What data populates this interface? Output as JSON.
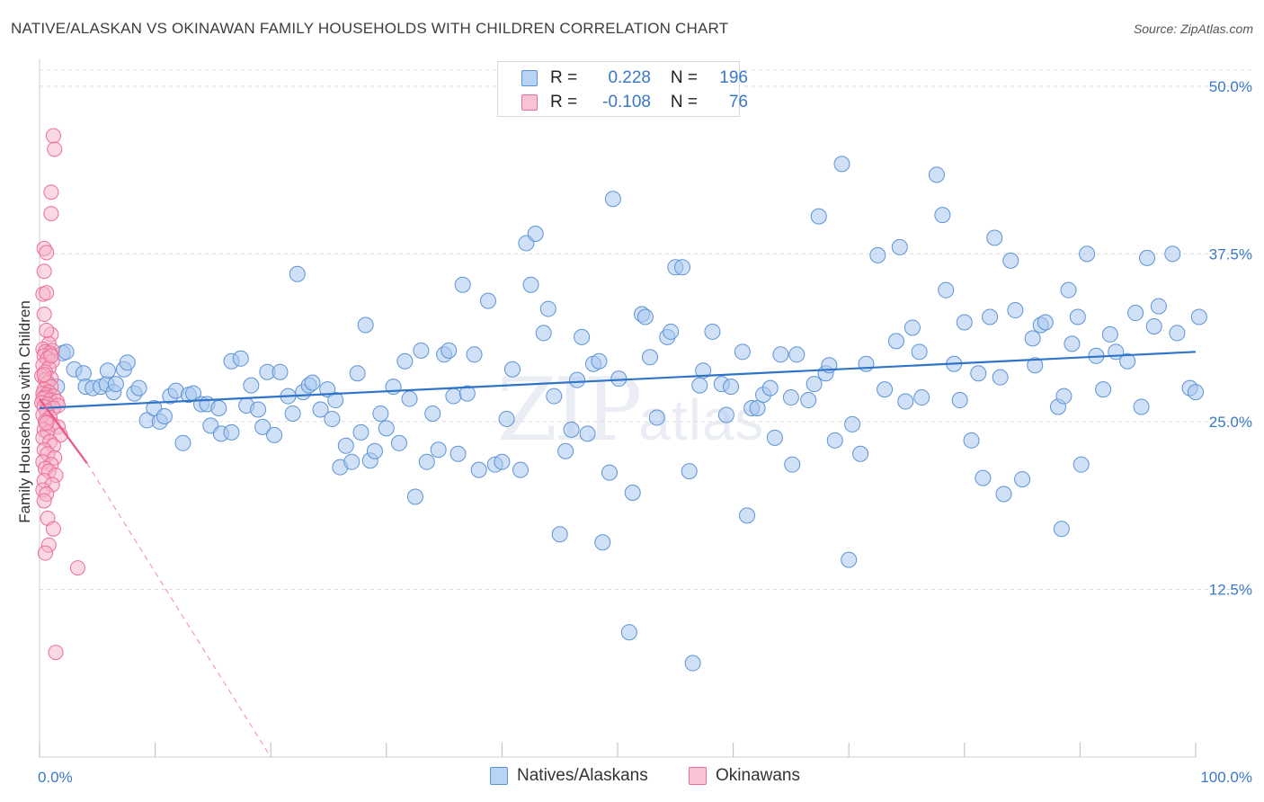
{
  "title": "NATIVE/ALASKAN VS OKINAWAN FAMILY HOUSEHOLDS WITH CHILDREN CORRELATION CHART",
  "source": "Source: ZipAtlas.com",
  "watermark": {
    "zip": "ZIP",
    "atlas": "atlas"
  },
  "colors": {
    "blue_fill": "#a9c8f0",
    "blue_stroke": "#5c93d6",
    "blue_line": "#2f74c9",
    "pink_fill": "#f6b3c8",
    "pink_stroke": "#ec6d97",
    "pink_line": "#e8568a",
    "grid": "#dcdcdc",
    "tick_text": "#3a78c9"
  },
  "legend": {
    "rows": [
      {
        "r_label": "R =",
        "r_value": "0.228",
        "n_label": "N =",
        "n_value": "196"
      },
      {
        "r_label": "R =",
        "r_value": "-0.108",
        "n_label": "N =",
        "n_value": "76"
      }
    ]
  },
  "bottom_legend": {
    "natives": "Natives/Alaskans",
    "okinawans": "Okinawans"
  },
  "chart_data": {
    "type": "scatter",
    "title": "NATIVE/ALASKAN VS OKINAWAN FAMILY HOUSEHOLDS WITH CHILDREN CORRELATION CHART",
    "xlabel": "",
    "ylabel": "Family Households with Children",
    "xlim": [
      0,
      100
    ],
    "ylim": [
      0,
      52
    ],
    "x_tick_labels": [
      "0.0%",
      "100.0%"
    ],
    "y_ticks": [
      12.5,
      25.0,
      37.5,
      50.0
    ],
    "y_tick_labels": [
      "12.5%",
      "25.0%",
      "37.5%",
      "50.0%"
    ],
    "series": [
      {
        "name": "Natives/Alaskans",
        "r": 0.228,
        "n": 196,
        "trend": {
          "x": [
            0,
            100
          ],
          "y": [
            26.0,
            30.2
          ]
        },
        "points": [
          [
            1.5,
            27.6
          ],
          [
            2.0,
            30.1
          ],
          [
            2.3,
            30.2
          ],
          [
            3.0,
            28.9
          ],
          [
            3.8,
            28.6
          ],
          [
            4.0,
            27.6
          ],
          [
            4.6,
            27.5
          ],
          [
            5.3,
            27.6
          ],
          [
            5.8,
            27.8
          ],
          [
            5.9,
            28.8
          ],
          [
            6.4,
            27.2
          ],
          [
            6.6,
            27.8
          ],
          [
            7.3,
            28.9
          ],
          [
            7.6,
            29.4
          ],
          [
            8.2,
            27.1
          ],
          [
            8.6,
            27.5
          ],
          [
            9.3,
            25.1
          ],
          [
            9.9,
            26.0
          ],
          [
            10.4,
            25.0
          ],
          [
            10.8,
            25.4
          ],
          [
            11.3,
            26.9
          ],
          [
            11.8,
            27.3
          ],
          [
            12.4,
            23.4
          ],
          [
            12.9,
            27.0
          ],
          [
            13.3,
            27.1
          ],
          [
            14.0,
            26.3
          ],
          [
            14.5,
            26.3
          ],
          [
            14.8,
            24.7
          ],
          [
            15.5,
            26.0
          ],
          [
            15.7,
            24.1
          ],
          [
            16.6,
            24.2
          ],
          [
            16.6,
            29.5
          ],
          [
            17.4,
            29.7
          ],
          [
            17.9,
            26.2
          ],
          [
            18.3,
            27.7
          ],
          [
            18.9,
            25.9
          ],
          [
            19.3,
            24.6
          ],
          [
            19.7,
            28.7
          ],
          [
            20.3,
            24.0
          ],
          [
            20.8,
            28.7
          ],
          [
            21.5,
            26.9
          ],
          [
            21.9,
            25.6
          ],
          [
            22.3,
            36.0
          ],
          [
            22.8,
            27.2
          ],
          [
            23.3,
            27.7
          ],
          [
            23.6,
            27.9
          ],
          [
            24.3,
            25.9
          ],
          [
            24.9,
            27.4
          ],
          [
            25.3,
            25.2
          ],
          [
            25.6,
            26.6
          ],
          [
            26.0,
            21.6
          ],
          [
            26.5,
            23.2
          ],
          [
            27.0,
            22.0
          ],
          [
            27.5,
            28.6
          ],
          [
            27.8,
            24.2
          ],
          [
            28.2,
            32.2
          ],
          [
            28.6,
            22.1
          ],
          [
            29.0,
            22.8
          ],
          [
            29.5,
            25.6
          ],
          [
            30.0,
            24.5
          ],
          [
            30.6,
            27.6
          ],
          [
            31.1,
            23.4
          ],
          [
            31.6,
            29.5
          ],
          [
            32.0,
            26.7
          ],
          [
            32.5,
            19.4
          ],
          [
            33.0,
            30.3
          ],
          [
            33.5,
            22.0
          ],
          [
            34.0,
            25.6
          ],
          [
            34.5,
            22.9
          ],
          [
            35.0,
            30.0
          ],
          [
            35.4,
            30.3
          ],
          [
            35.8,
            26.9
          ],
          [
            36.2,
            22.6
          ],
          [
            36.6,
            35.2
          ],
          [
            37.0,
            27.1
          ],
          [
            37.6,
            30.0
          ],
          [
            38.0,
            21.4
          ],
          [
            38.8,
            34.0
          ],
          [
            39.4,
            21.8
          ],
          [
            40.0,
            22.0
          ],
          [
            40.4,
            25.2
          ],
          [
            40.9,
            28.9
          ],
          [
            41.6,
            21.4
          ],
          [
            42.1,
            38.3
          ],
          [
            42.5,
            35.2
          ],
          [
            42.9,
            39.0
          ],
          [
            43.6,
            31.6
          ],
          [
            44.0,
            33.4
          ],
          [
            44.5,
            26.9
          ],
          [
            45.0,
            16.6
          ],
          [
            45.5,
            22.8
          ],
          [
            46.0,
            24.4
          ],
          [
            46.5,
            28.1
          ],
          [
            46.9,
            31.3
          ],
          [
            47.4,
            24.1
          ],
          [
            47.9,
            29.3
          ],
          [
            48.4,
            29.5
          ],
          [
            48.7,
            16.0
          ],
          [
            49.3,
            21.2
          ],
          [
            49.6,
            41.6
          ],
          [
            50.1,
            28.2
          ],
          [
            51.0,
            9.3
          ],
          [
            51.3,
            19.7
          ],
          [
            52.1,
            33.0
          ],
          [
            52.4,
            32.8
          ],
          [
            52.8,
            29.8
          ],
          [
            53.4,
            25.3
          ],
          [
            54.3,
            31.3
          ],
          [
            54.6,
            31.7
          ],
          [
            55.0,
            36.5
          ],
          [
            55.6,
            36.5
          ],
          [
            56.2,
            21.3
          ],
          [
            56.5,
            7.0
          ],
          [
            57.1,
            27.7
          ],
          [
            57.4,
            28.8
          ],
          [
            58.2,
            31.7
          ],
          [
            59.0,
            27.8
          ],
          [
            59.4,
            25.5
          ],
          [
            59.8,
            27.6
          ],
          [
            60.8,
            30.2
          ],
          [
            61.2,
            18.0
          ],
          [
            61.6,
            26.0
          ],
          [
            62.1,
            26.0
          ],
          [
            62.6,
            27.0
          ],
          [
            63.2,
            27.5
          ],
          [
            63.6,
            23.8
          ],
          [
            64.1,
            30.0
          ],
          [
            65.0,
            26.8
          ],
          [
            65.1,
            21.8
          ],
          [
            65.5,
            30.0
          ],
          [
            66.5,
            26.6
          ],
          [
            67.0,
            27.8
          ],
          [
            67.4,
            40.3
          ],
          [
            68.0,
            28.6
          ],
          [
            68.3,
            29.2
          ],
          [
            68.8,
            23.6
          ],
          [
            69.4,
            44.2
          ],
          [
            70.0,
            14.7
          ],
          [
            70.3,
            24.8
          ],
          [
            71.0,
            22.6
          ],
          [
            71.5,
            29.3
          ],
          [
            72.5,
            37.4
          ],
          [
            73.1,
            27.4
          ],
          [
            74.1,
            31.0
          ],
          [
            74.4,
            38.0
          ],
          [
            74.9,
            26.5
          ],
          [
            75.5,
            32.0
          ],
          [
            76.1,
            30.2
          ],
          [
            76.3,
            26.8
          ],
          [
            77.6,
            43.4
          ],
          [
            78.1,
            40.4
          ],
          [
            78.4,
            34.8
          ],
          [
            79.1,
            29.3
          ],
          [
            79.6,
            26.6
          ],
          [
            80.0,
            32.4
          ],
          [
            80.6,
            23.6
          ],
          [
            81.2,
            28.6
          ],
          [
            81.6,
            20.8
          ],
          [
            82.2,
            32.8
          ],
          [
            82.6,
            38.7
          ],
          [
            83.1,
            28.3
          ],
          [
            83.4,
            19.6
          ],
          [
            84.0,
            37.0
          ],
          [
            84.4,
            33.3
          ],
          [
            85.0,
            20.7
          ],
          [
            85.9,
            31.2
          ],
          [
            86.1,
            29.2
          ],
          [
            86.6,
            32.2
          ],
          [
            87.0,
            32.4
          ],
          [
            88.1,
            26.1
          ],
          [
            88.4,
            17.0
          ],
          [
            88.6,
            26.9
          ],
          [
            89.0,
            34.8
          ],
          [
            89.3,
            30.8
          ],
          [
            89.8,
            32.8
          ],
          [
            90.1,
            21.8
          ],
          [
            90.6,
            37.5
          ],
          [
            91.4,
            29.9
          ],
          [
            92.0,
            27.4
          ],
          [
            92.6,
            31.5
          ],
          [
            93.1,
            30.2
          ],
          [
            94.1,
            29.5
          ],
          [
            94.8,
            33.1
          ],
          [
            95.3,
            26.1
          ],
          [
            95.8,
            37.2
          ],
          [
            96.4,
            32.1
          ],
          [
            96.8,
            33.6
          ],
          [
            98.0,
            37.5
          ],
          [
            98.4,
            31.6
          ],
          [
            99.5,
            27.5
          ],
          [
            100.0,
            27.2
          ],
          [
            100.3,
            32.8
          ]
        ]
      },
      {
        "name": "Okinawans",
        "r": -0.108,
        "n": 76,
        "trend": {
          "x": [
            0,
            4.1
          ],
          "y": [
            26.7,
            21.9
          ],
          "extended": {
            "x": [
              4.1,
              20.0
            ],
            "y": [
              21.9,
              0
            ]
          }
        },
        "points": [
          [
            1.2,
            46.3
          ],
          [
            1.3,
            45.3
          ],
          [
            1.0,
            42.1
          ],
          [
            1.0,
            40.5
          ],
          [
            0.4,
            37.9
          ],
          [
            0.6,
            37.6
          ],
          [
            0.4,
            36.2
          ],
          [
            0.3,
            34.5
          ],
          [
            0.6,
            34.6
          ],
          [
            0.4,
            33.0
          ],
          [
            1.0,
            31.5
          ],
          [
            0.8,
            30.8
          ],
          [
            0.3,
            30.4
          ],
          [
            1.1,
            30.3
          ],
          [
            0.5,
            30.2
          ],
          [
            0.9,
            30.1
          ],
          [
            0.4,
            29.9
          ],
          [
            0.7,
            29.7
          ],
          [
            1.1,
            29.5
          ],
          [
            0.3,
            29.2
          ],
          [
            0.8,
            29.0
          ],
          [
            0.5,
            28.7
          ],
          [
            0.2,
            28.4
          ],
          [
            1.0,
            28.2
          ],
          [
            0.5,
            28.1
          ],
          [
            0.7,
            27.9
          ],
          [
            1.0,
            27.6
          ],
          [
            0.4,
            27.4
          ],
          [
            0.8,
            27.2
          ],
          [
            0.3,
            27.1
          ],
          [
            0.6,
            27.0
          ],
          [
            1.2,
            26.9
          ],
          [
            0.5,
            26.8
          ],
          [
            0.3,
            26.7
          ],
          [
            0.9,
            26.6
          ],
          [
            1.5,
            26.5
          ],
          [
            0.2,
            26.4
          ],
          [
            0.7,
            26.3
          ],
          [
            1.6,
            26.2
          ],
          [
            0.4,
            26.1
          ],
          [
            1.2,
            26.0
          ],
          [
            0.6,
            25.8
          ],
          [
            0.3,
            25.5
          ],
          [
            0.9,
            25.3
          ],
          [
            0.5,
            25.0
          ],
          [
            1.1,
            24.8
          ],
          [
            1.6,
            24.6
          ],
          [
            0.4,
            24.4
          ],
          [
            0.7,
            24.2
          ],
          [
            1.8,
            24.0
          ],
          [
            0.3,
            23.8
          ],
          [
            0.9,
            23.5
          ],
          [
            1.2,
            23.2
          ],
          [
            0.4,
            22.9
          ],
          [
            0.7,
            22.6
          ],
          [
            1.3,
            22.3
          ],
          [
            0.3,
            22.0
          ],
          [
            1.0,
            21.8
          ],
          [
            0.5,
            21.5
          ],
          [
            0.8,
            21.3
          ],
          [
            1.4,
            21.0
          ],
          [
            0.4,
            20.6
          ],
          [
            1.1,
            20.3
          ],
          [
            0.3,
            19.9
          ],
          [
            0.6,
            19.6
          ],
          [
            0.4,
            19.1
          ],
          [
            0.7,
            17.8
          ],
          [
            1.2,
            17.0
          ],
          [
            0.8,
            15.8
          ],
          [
            0.5,
            15.2
          ],
          [
            3.3,
            14.1
          ],
          [
            1.4,
            7.8
          ],
          [
            0.6,
            31.8
          ],
          [
            1.0,
            29.9
          ],
          [
            0.4,
            28.5
          ],
          [
            0.6,
            24.9
          ]
        ]
      }
    ]
  }
}
